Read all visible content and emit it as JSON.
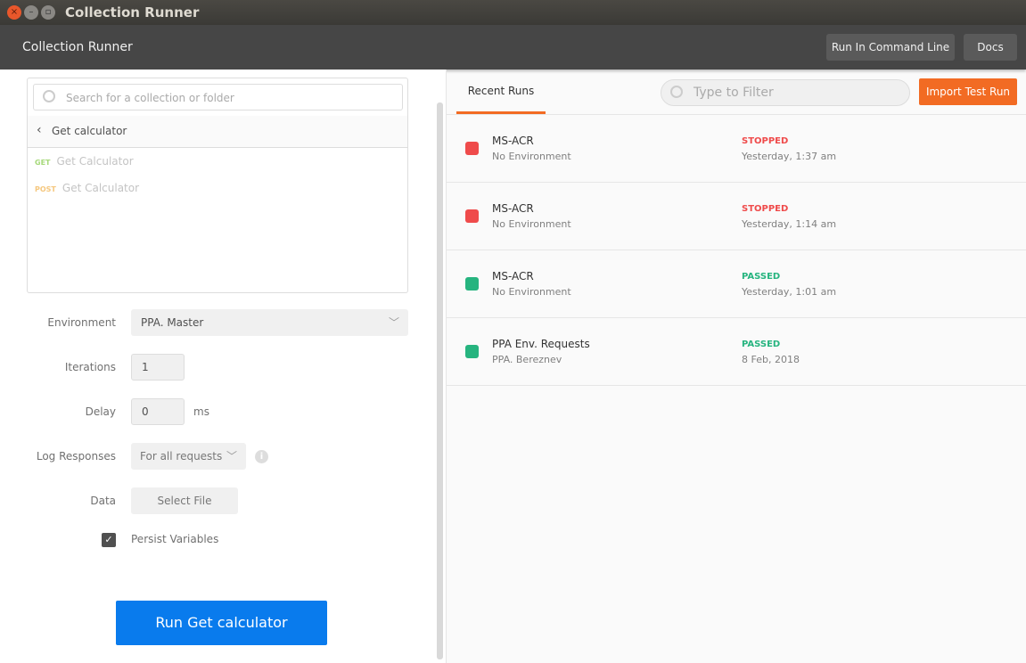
{
  "window": {
    "title": "Collection Runner"
  },
  "header": {
    "title": "Collection Runner",
    "cmdline_label": "Run In Command Line",
    "docs_label": "Docs"
  },
  "picker": {
    "search_placeholder": "Search for a collection or folder",
    "breadcrumb": "Get calculator",
    "requests": [
      {
        "method": "GET",
        "name": "Get Calculator",
        "color": "#a6d97a"
      },
      {
        "method": "POST",
        "name": "Get Calculator",
        "color": "#f5c77e"
      }
    ]
  },
  "form": {
    "environment_label": "Environment",
    "environment_value": "PPA. Master",
    "iterations_label": "Iterations",
    "iterations_value": "1",
    "delay_label": "Delay",
    "delay_value": "0",
    "delay_unit": "ms",
    "log_label": "Log Responses",
    "log_value": "For all requests",
    "data_label": "Data",
    "select_file_label": "Select File",
    "persist_label": "Persist Variables",
    "persist_checked": true
  },
  "run_button": "Run Get calculator",
  "right": {
    "tab": "Recent Runs",
    "filter_placeholder": "Type to Filter",
    "import_label": "Import Test Run",
    "runs": [
      {
        "name": "MS-ACR",
        "env": "No Environment",
        "status": "STOPPED",
        "time": "Yesterday, 1:37 am",
        "color": "#ef4b4b"
      },
      {
        "name": "MS-ACR",
        "env": "No Environment",
        "status": "STOPPED",
        "time": "Yesterday, 1:14 am",
        "color": "#ef4b4b"
      },
      {
        "name": "MS-ACR",
        "env": "No Environment",
        "status": "PASSED",
        "time": "Yesterday, 1:01 am",
        "color": "#26b47f"
      },
      {
        "name": "PPA Env. Requests",
        "env": "PPA. Bereznev",
        "status": "PASSED",
        "time": "8 Feb, 2018",
        "color": "#26b47f"
      }
    ]
  }
}
